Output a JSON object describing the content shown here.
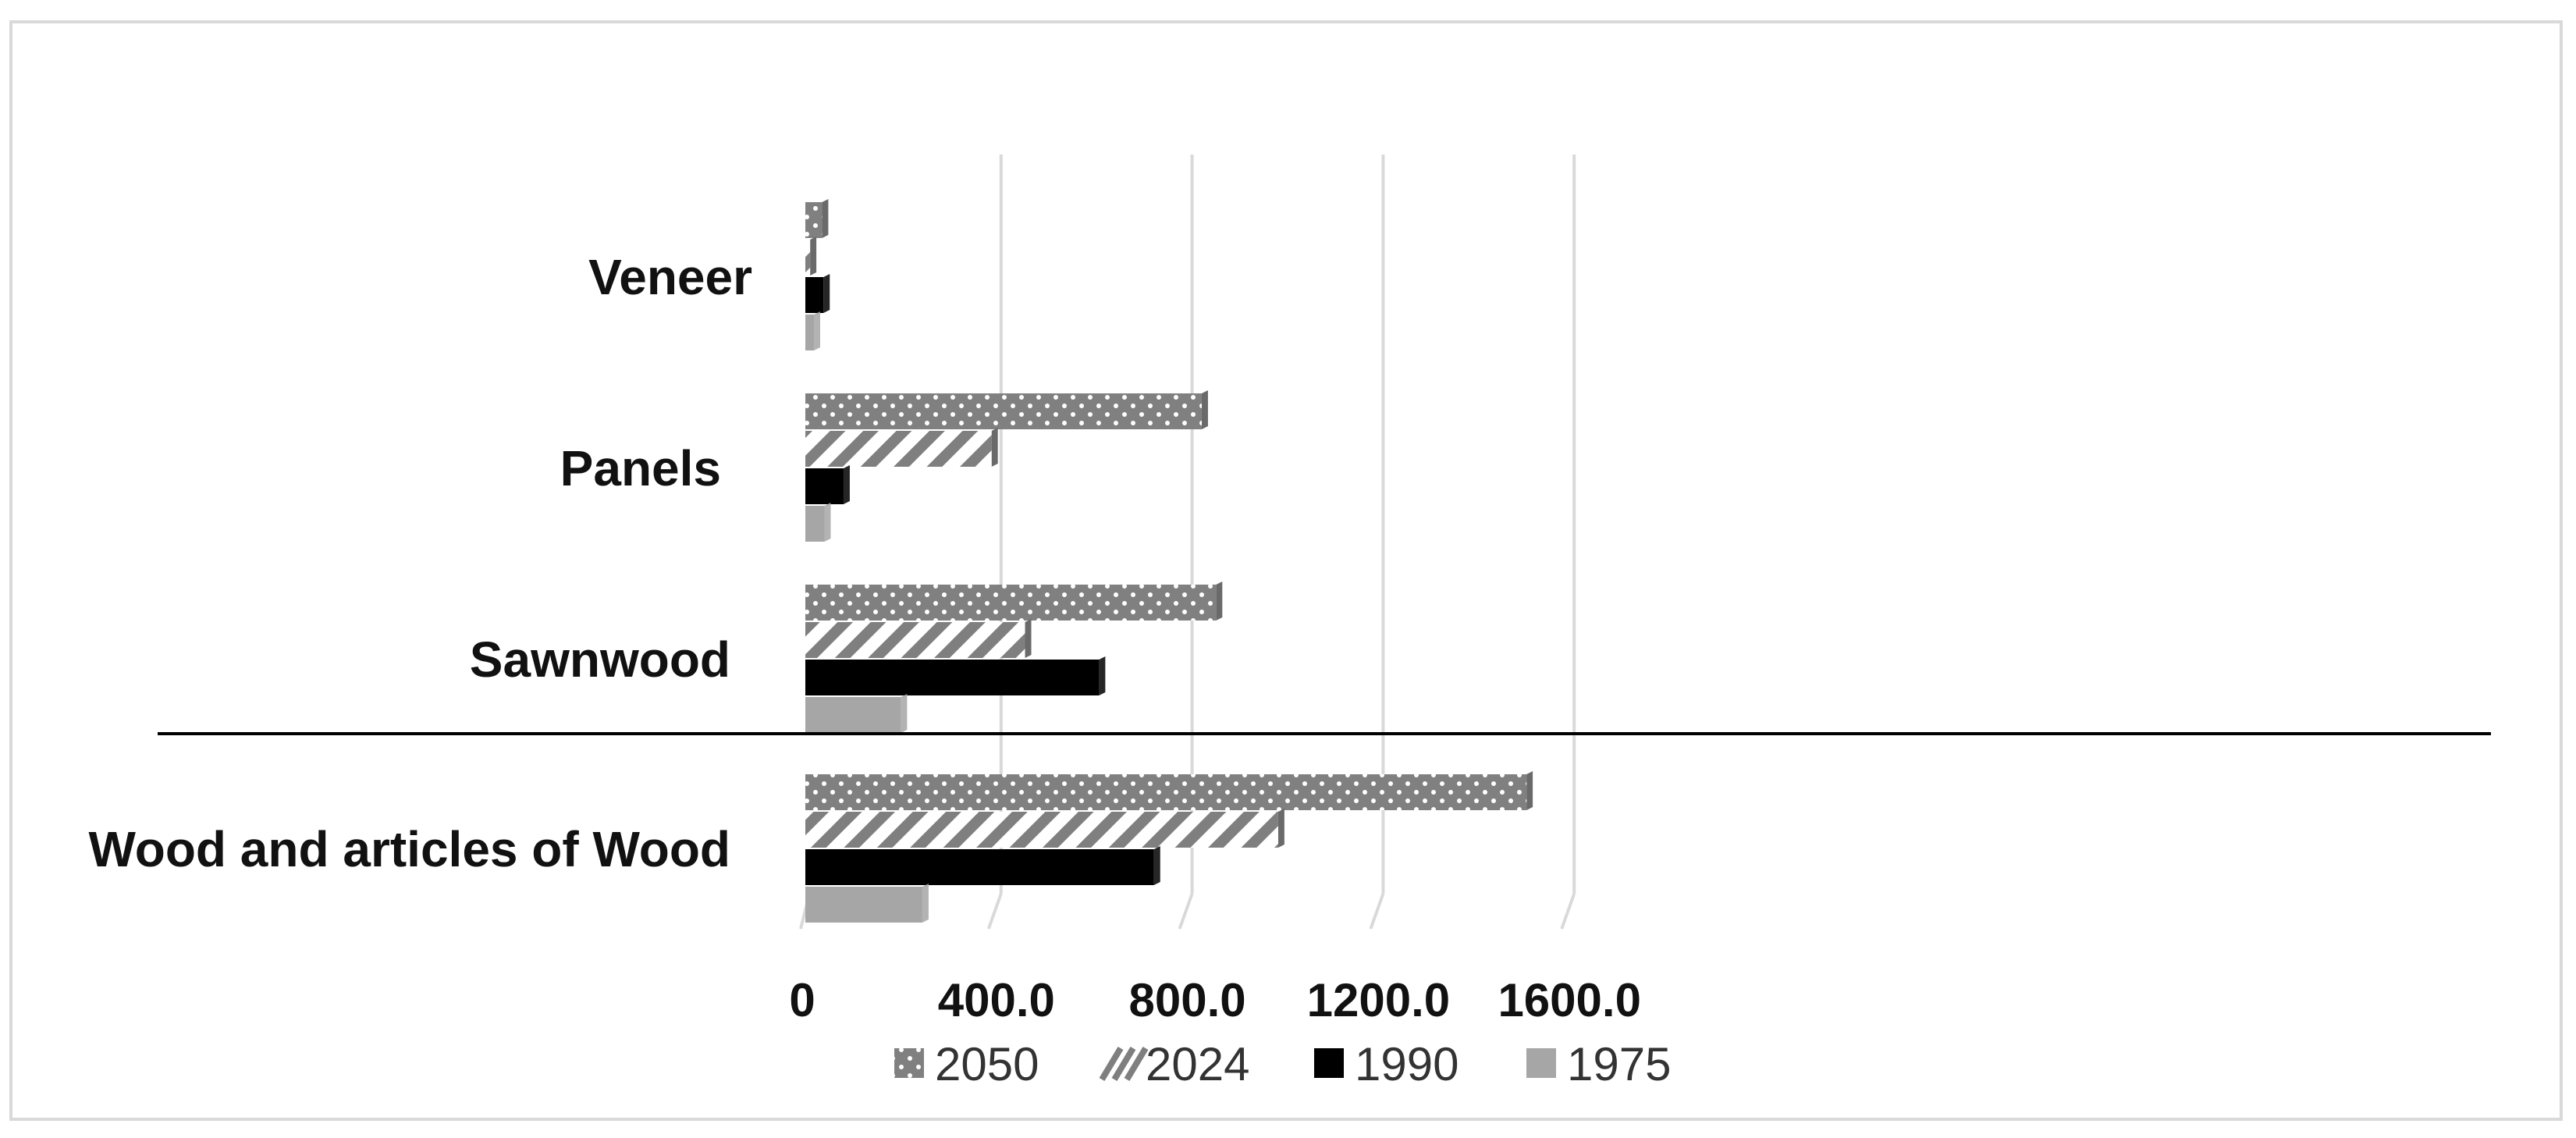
{
  "chart_data": {
    "type": "bar",
    "orientation": "horizontal",
    "categories": [
      "Veneer",
      "Panels",
      "Sawnwood",
      "Wood and articles of Wood"
    ],
    "series": [
      {
        "name": "2050",
        "values": [
          35,
          830,
          860,
          1510
        ],
        "pattern": "dots",
        "color": "#808080"
      },
      {
        "name": "2024",
        "values": [
          10,
          390,
          460,
          990
        ],
        "pattern": "diagonal-hatch",
        "color": "#7f7f7f"
      },
      {
        "name": "1990",
        "values": [
          38,
          80,
          615,
          730
        ],
        "pattern": "solid",
        "color": "#000000"
      },
      {
        "name": "1975",
        "values": [
          18,
          40,
          200,
          245
        ],
        "pattern": "solid",
        "color": "#a6a6a6"
      }
    ],
    "xlim": [
      0,
      1760
    ],
    "xticks": [
      "0",
      "400.0",
      "800.0",
      "1200.0",
      "1600.0"
    ],
    "xtick_values": [
      0,
      400,
      800,
      1200,
      1600
    ],
    "grid": true,
    "legend": "bottom",
    "separator_after": "Sawnwood"
  }
}
